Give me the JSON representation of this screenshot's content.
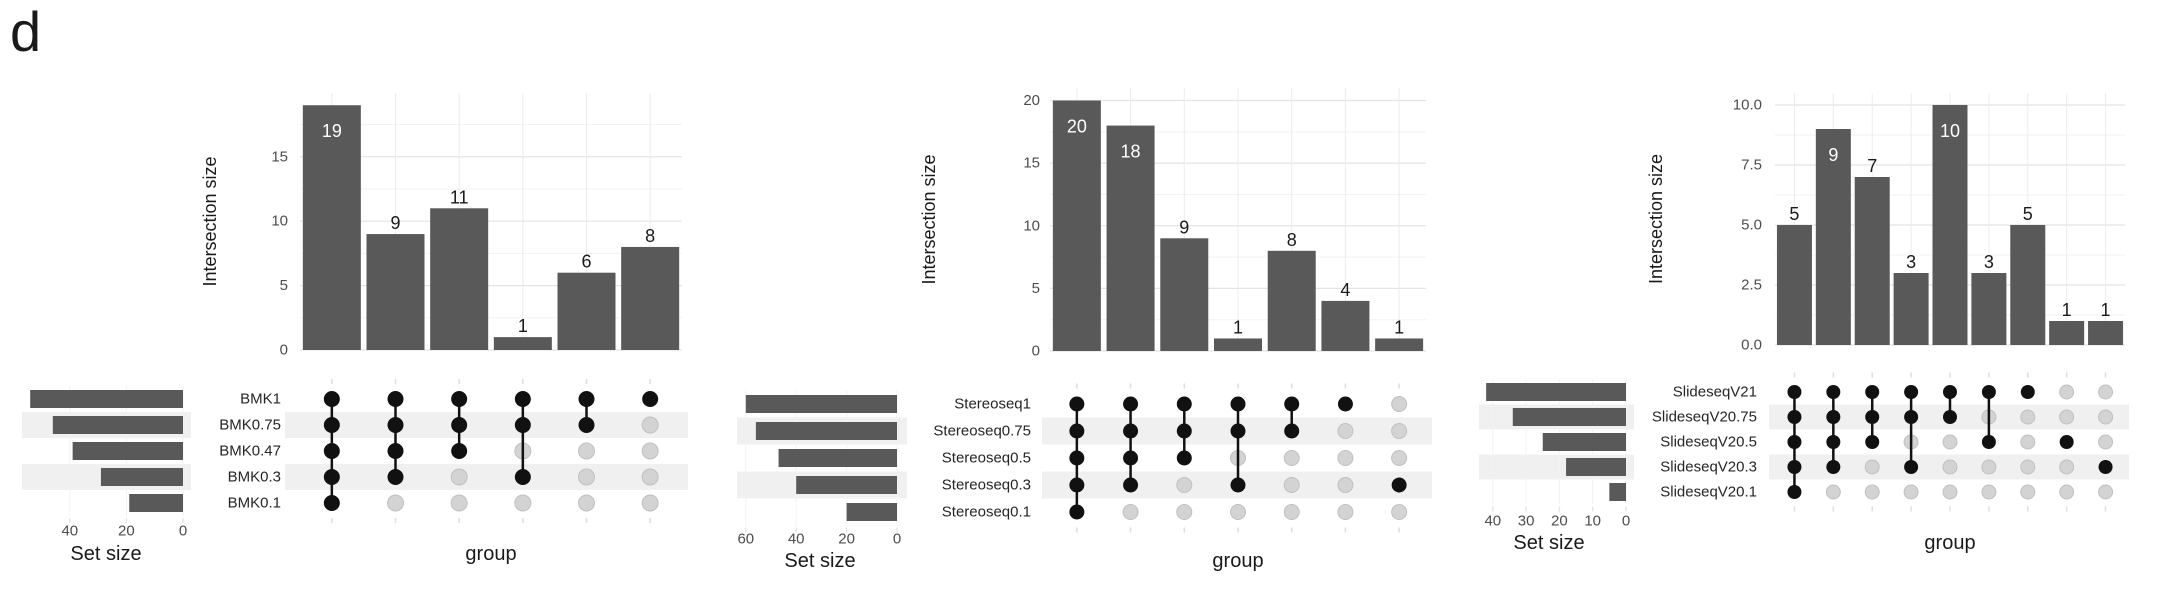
{
  "figure_label": "d",
  "colors": {
    "bar": "#595959",
    "dot_filled": "#111111",
    "dot_empty": "#d3d3d3",
    "dot_empty_border": "#c0c0c0",
    "row_stripe": "#f0f0f0",
    "grid_major": "#e4e4e4",
    "grid_minor": "#f2f2f2",
    "grid_column": "#ececec",
    "tick_text": "#4d4d4d",
    "title_text": "#1a1a1a",
    "label_inside": "#ffffff",
    "label_outside": "#1a1a1a"
  },
  "chart_data": [
    {
      "type": "upset",
      "ylabel": "Intersection size",
      "xlabel": "group",
      "set_size_label": "Set size",
      "sets": [
        "BMK1",
        "BMK0.75",
        "BMK0.47",
        "BMK0.3",
        "BMK0.1"
      ],
      "set_sizes": [
        54,
        46,
        39,
        29,
        19
      ],
      "set_size_ticks": [
        40,
        20,
        0
      ],
      "y_ticks": [
        "0",
        "5",
        "10",
        "15"
      ],
      "intersections": [
        {
          "size": 19,
          "members": [
            "BMK1",
            "BMK0.75",
            "BMK0.47",
            "BMK0.3",
            "BMK0.1"
          ]
        },
        {
          "size": 9,
          "members": [
            "BMK1",
            "BMK0.75",
            "BMK0.47",
            "BMK0.3"
          ]
        },
        {
          "size": 11,
          "members": [
            "BMK1",
            "BMK0.75",
            "BMK0.47"
          ]
        },
        {
          "size": 1,
          "members": [
            "BMK1",
            "BMK0.75",
            "BMK0.3"
          ]
        },
        {
          "size": 6,
          "members": [
            "BMK1",
            "BMK0.75"
          ]
        },
        {
          "size": 8,
          "members": [
            "BMK1"
          ]
        }
      ]
    },
    {
      "type": "upset",
      "ylabel": "Intersection size",
      "xlabel": "group",
      "set_size_label": "Set size",
      "sets": [
        "Stereoseq1",
        "Stereoseq0.75",
        "Stereoseq0.5",
        "Stereoseq0.3",
        "Stereoseq0.1"
      ],
      "set_sizes": [
        60,
        56,
        47,
        40,
        20
      ],
      "set_size_ticks": [
        60,
        40,
        20,
        0
      ],
      "y_ticks": [
        "0",
        "5",
        "10",
        "15",
        "20"
      ],
      "intersections": [
        {
          "size": 20,
          "members": [
            "Stereoseq1",
            "Stereoseq0.75",
            "Stereoseq0.5",
            "Stereoseq0.3",
            "Stereoseq0.1"
          ]
        },
        {
          "size": 18,
          "members": [
            "Stereoseq1",
            "Stereoseq0.75",
            "Stereoseq0.5",
            "Stereoseq0.3"
          ]
        },
        {
          "size": 9,
          "members": [
            "Stereoseq1",
            "Stereoseq0.75",
            "Stereoseq0.5"
          ]
        },
        {
          "size": 1,
          "members": [
            "Stereoseq1",
            "Stereoseq0.75",
            "Stereoseq0.3"
          ]
        },
        {
          "size": 8,
          "members": [
            "Stereoseq1",
            "Stereoseq0.75"
          ]
        },
        {
          "size": 4,
          "members": [
            "Stereoseq1"
          ]
        },
        {
          "size": 1,
          "members": [
            "Stereoseq0.3"
          ]
        }
      ]
    },
    {
      "type": "upset",
      "ylabel": "Intersection size",
      "xlabel": "group",
      "set_size_label": "Set size",
      "sets": [
        "SlideseqV21",
        "SlideseqV20.75",
        "SlideseqV20.5",
        "SlideseqV20.3",
        "SlideseqV20.1"
      ],
      "set_sizes": [
        42,
        34,
        25,
        18,
        5
      ],
      "set_size_ticks": [
        40,
        30,
        20,
        10,
        0
      ],
      "y_ticks": [
        "0.0",
        "2.5",
        "5.0",
        "7.5",
        "10.0"
      ],
      "intersections": [
        {
          "size": 5,
          "members": [
            "SlideseqV21",
            "SlideseqV20.75",
            "SlideseqV20.5",
            "SlideseqV20.3",
            "SlideseqV20.1"
          ]
        },
        {
          "size": 9,
          "members": [
            "SlideseqV21",
            "SlideseqV20.75",
            "SlideseqV20.5",
            "SlideseqV20.3"
          ]
        },
        {
          "size": 7,
          "members": [
            "SlideseqV21",
            "SlideseqV20.75",
            "SlideseqV20.5"
          ]
        },
        {
          "size": 3,
          "members": [
            "SlideseqV21",
            "SlideseqV20.75",
            "SlideseqV20.3"
          ]
        },
        {
          "size": 10,
          "members": [
            "SlideseqV21",
            "SlideseqV20.75"
          ]
        },
        {
          "size": 3,
          "members": [
            "SlideseqV21",
            "SlideseqV20.5"
          ]
        },
        {
          "size": 5,
          "members": [
            "SlideseqV21"
          ]
        },
        {
          "size": 1,
          "members": [
            "SlideseqV20.5"
          ]
        },
        {
          "size": 1,
          "members": [
            "SlideseqV20.3"
          ]
        }
      ]
    }
  ]
}
